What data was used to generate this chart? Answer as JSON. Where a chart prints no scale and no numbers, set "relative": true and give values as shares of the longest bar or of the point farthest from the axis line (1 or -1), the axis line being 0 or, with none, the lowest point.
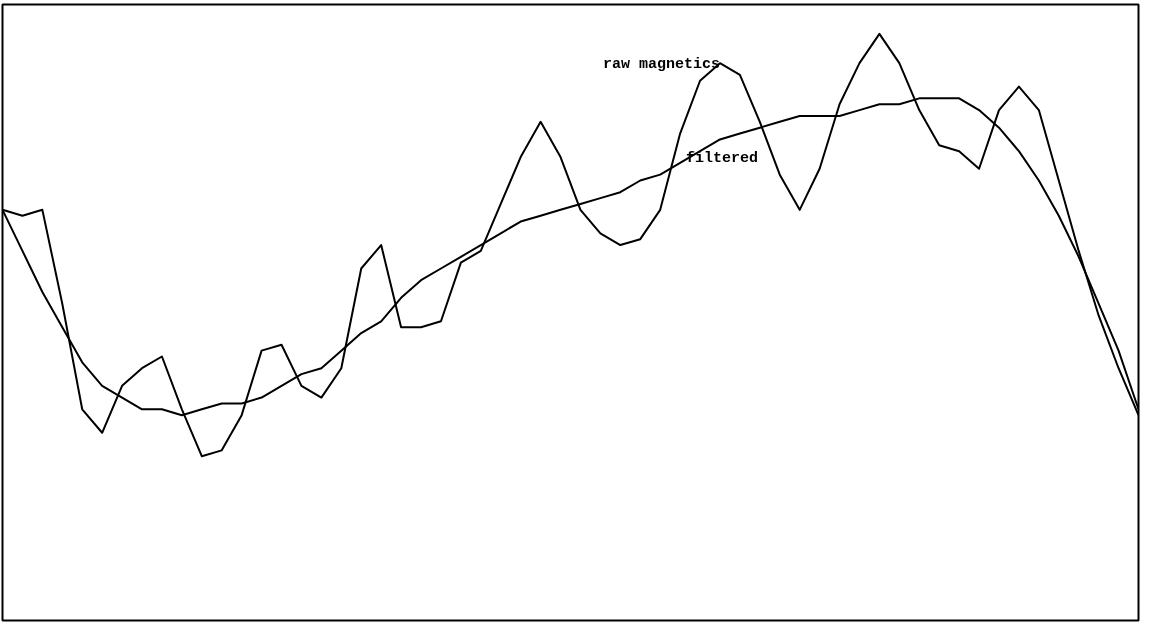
{
  "chart_data": {
    "type": "line",
    "relative": true,
    "marker": "none",
    "line_style": "solid",
    "categories": [
      null,
      null,
      null,
      null,
      null,
      null,
      null,
      null,
      null,
      null,
      null,
      null,
      null,
      null,
      null,
      null,
      null,
      null,
      null,
      null,
      null,
      null,
      null,
      null,
      null,
      null,
      null,
      null,
      null,
      null,
      null,
      null,
      null,
      null,
      null,
      null,
      null,
      null,
      null,
      null,
      null,
      null,
      null,
      null,
      null,
      null,
      null,
      null,
      null,
      null,
      null,
      null,
      null,
      null,
      null,
      null,
      null,
      null
    ],
    "series": [
      {
        "name": "raw magnetics",
        "color": "#000000",
        "values": [
          0.7,
          0.69,
          0.7,
          0.54,
          0.36,
          0.32,
          0.4,
          0.43,
          0.45,
          0.36,
          0.28,
          0.29,
          0.35,
          0.46,
          0.47,
          0.4,
          0.38,
          0.43,
          0.6,
          0.64,
          0.5,
          0.5,
          0.51,
          0.61,
          0.63,
          0.71,
          0.79,
          0.85,
          0.79,
          0.7,
          0.66,
          0.64,
          0.65,
          0.7,
          0.83,
          0.92,
          0.95,
          0.93,
          0.85,
          0.76,
          0.7,
          0.77,
          0.88,
          0.95,
          1.0,
          0.95,
          0.87,
          0.81,
          0.8,
          0.77,
          0.87,
          0.91,
          0.87,
          0.75,
          0.63,
          0.52,
          0.43,
          0.35
        ]
      },
      {
        "name": "filtered",
        "color": "#000000",
        "values": [
          0.7,
          0.63,
          0.56,
          0.5,
          0.44,
          0.4,
          0.38,
          0.36,
          0.36,
          0.35,
          0.36,
          0.37,
          0.37,
          0.38,
          0.4,
          0.42,
          0.43,
          0.46,
          0.49,
          0.51,
          0.55,
          0.58,
          0.6,
          0.62,
          0.64,
          0.66,
          0.68,
          0.69,
          0.7,
          0.71,
          0.72,
          0.73,
          0.75,
          0.76,
          0.78,
          0.8,
          0.82,
          0.83,
          0.84,
          0.85,
          0.86,
          0.86,
          0.86,
          0.87,
          0.88,
          0.88,
          0.89,
          0.89,
          0.89,
          0.87,
          0.84,
          0.8,
          0.75,
          0.69,
          0.62,
          0.54,
          0.46,
          0.36
        ]
      }
    ]
  }
}
